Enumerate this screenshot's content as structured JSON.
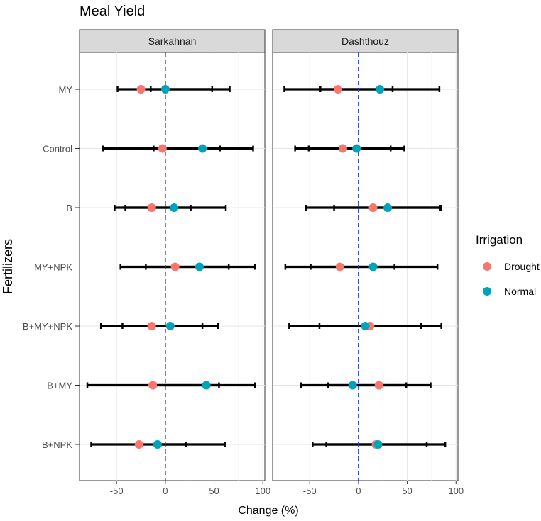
{
  "chart_data": {
    "type": "scatter",
    "title": "Meal Yield",
    "xlabel": "Change (%)",
    "ylabel": "Fertilizers",
    "xlim": [
      -88,
      102
    ],
    "xticks": [
      -50,
      0,
      50,
      100
    ],
    "xtick_labels": [
      "-50",
      "0",
      "50",
      "100"
    ],
    "categories": [
      "MY",
      "Control",
      "B",
      "MY+NPK",
      "B+MY+NPK",
      "B+MY",
      "B+NPK"
    ],
    "reference_line": 0,
    "legend": {
      "title": "Irrigation",
      "position": "right",
      "entries": [
        {
          "name": "Drought",
          "color": "#F8766D"
        },
        {
          "name": "Normal",
          "color": "#00A3B8"
        }
      ]
    },
    "panels": [
      {
        "name": "Sarkahnan",
        "series": [
          {
            "name": "Drought",
            "color": "#F8766D",
            "values": [
              -25,
              -3,
              -14,
              10,
              -14,
              -13,
              -27
            ],
            "lower": [
              -49,
              -64,
              -52,
              -46,
              -66,
              -80,
              -76
            ],
            "upper": [
              48,
              56,
              26,
              65,
              38,
              55,
              21
            ]
          },
          {
            "name": "Normal",
            "color": "#00A3B8",
            "values": [
              0,
              38,
              9,
              35,
              5,
              42,
              -8
            ],
            "lower": [
              -15,
              -12,
              -41,
              -20,
              -44,
              -10,
              -5
            ],
            "upper": [
              66,
              90,
              62,
              92,
              54,
              92,
              61
            ]
          }
        ]
      },
      {
        "name": "Dashthouz",
        "series": [
          {
            "name": "Drought",
            "color": "#F8766D",
            "values": [
              -21,
              -16,
              15,
              -19,
              12,
              21,
              18
            ],
            "lower": [
              -76,
              -65,
              -54,
              -75,
              -71,
              -59,
              -47
            ],
            "upper": [
              35,
              33,
              85,
              37,
              64,
              49,
              70
            ]
          },
          {
            "name": "Normal",
            "color": "#00A3B8",
            "values": [
              22,
              -2,
              30,
              15,
              7,
              -6,
              20
            ],
            "lower": [
              -39,
              -51,
              -25,
              -49,
              -40,
              -31,
              -33
            ],
            "upper": [
              83,
              47,
              84,
              81,
              85,
              74,
              89
            ]
          }
        ]
      }
    ]
  }
}
